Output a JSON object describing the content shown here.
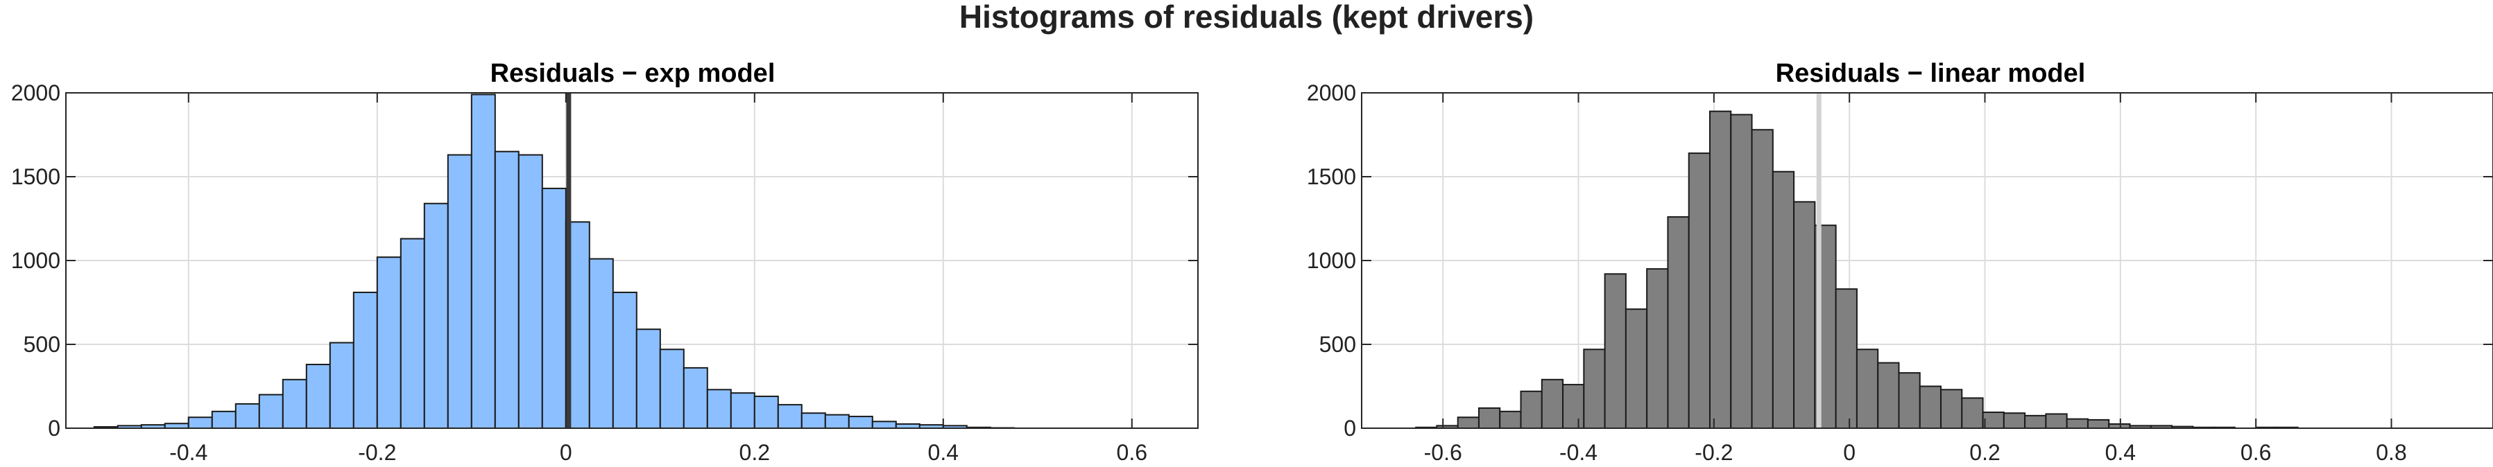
{
  "suptitle": "Histograms of residuals  (kept drivers)",
  "colors": {
    "exp_bar": "#8cbfff",
    "linear_bar": "#808080",
    "bar_edge": "#1a1a1a",
    "grid": "#dcdcdc",
    "axis": "#262626"
  },
  "chart_data": [
    {
      "type": "bar",
      "title": "Residuals − exp model",
      "xlabel": "",
      "ylabel": "",
      "xlim": [
        -0.53,
        0.67
      ],
      "ylim": [
        0,
        2000
      ],
      "grid": true,
      "xticks": [
        -0.4,
        -0.2,
        0,
        0.2,
        0.4,
        0.6
      ],
      "xtick_labels": [
        "-0.4",
        "-0.2",
        "0",
        "0.2",
        "0.4",
        "0.6"
      ],
      "yticks": [
        0,
        500,
        1000,
        1500,
        2000
      ],
      "ytick_labels": [
        "0",
        "500",
        "1000",
        "1500",
        "2000"
      ],
      "bin_start": -0.5,
      "bin_width": 0.025,
      "values": [
        8,
        15,
        20,
        28,
        65,
        100,
        145,
        200,
        290,
        380,
        510,
        810,
        1020,
        1130,
        1340,
        1630,
        1990,
        1650,
        1630,
        1430,
        1230,
        1010,
        810,
        590,
        470,
        360,
        230,
        210,
        190,
        140,
        90,
        80,
        70,
        40,
        25,
        20,
        15,
        5,
        2
      ],
      "vline": 0.003,
      "vline_color": "#3a3a3a"
    },
    {
      "type": "bar",
      "title": "Residuals − linear model",
      "xlabel": "",
      "ylabel": "",
      "xlim": [
        -0.72,
        0.95
      ],
      "ylim": [
        0,
        2000
      ],
      "grid": true,
      "xticks": [
        -0.6,
        -0.4,
        -0.2,
        0,
        0.2,
        0.4,
        0.6,
        0.8
      ],
      "xtick_labels": [
        "-0.6",
        "-0.4",
        "-0.2",
        "0",
        "0.2",
        "0.4",
        "0.6",
        "0.8"
      ],
      "yticks": [
        0,
        500,
        1000,
        1500,
        2000
      ],
      "ytick_labels": [
        "0",
        "500",
        "1000",
        "1500",
        "2000"
      ],
      "bin_start": -0.64,
      "bin_width": 0.031,
      "values": [
        5,
        15,
        65,
        120,
        100,
        220,
        290,
        260,
        470,
        920,
        710,
        950,
        1260,
        1640,
        1890,
        1870,
        1780,
        1530,
        1350,
        1210,
        830,
        470,
        390,
        330,
        250,
        230,
        180,
        95,
        90,
        75,
        85,
        55,
        50,
        25,
        15,
        15,
        10,
        5,
        5,
        0,
        5,
        5
      ],
      "vline": -0.045,
      "vline_color": "#d3d3d3"
    }
  ]
}
